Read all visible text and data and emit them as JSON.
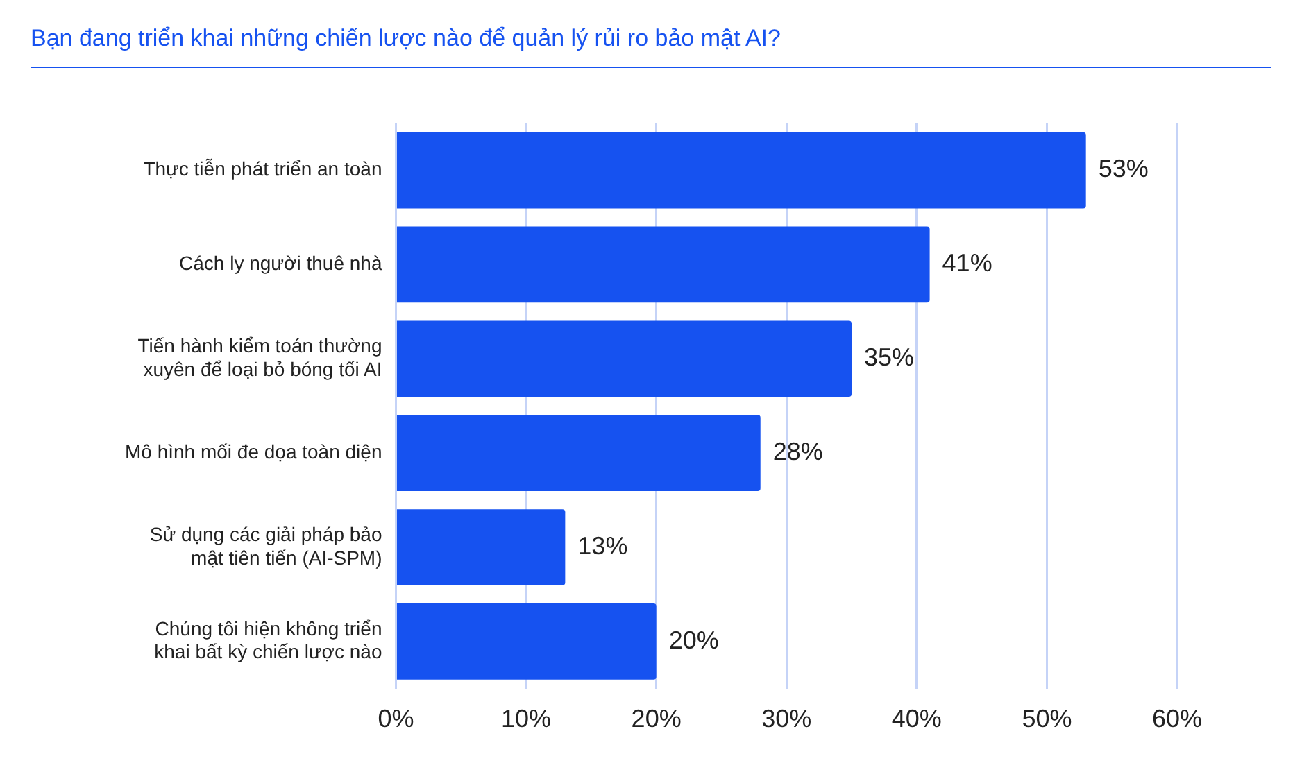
{
  "chart_data": {
    "type": "bar",
    "orientation": "horizontal",
    "title": "Bạn đang triển khai những chiến lược nào để quản lý rủi ro bảo mật AI?",
    "categories": [
      "Thực tiễn phát triển an toàn",
      "Cách ly người thuê nhà",
      "Tiến hành kiểm toán thường xuyên để loại bỏ bóng tối AI",
      "Mô hình mối đe dọa toàn diện",
      "Sử dụng các giải pháp bảo mật tiên tiến (AI-SPM)",
      "Chúng tôi hiện không triển khai bất kỳ chiến lược nào"
    ],
    "values": [
      53,
      41,
      35,
      28,
      13,
      20
    ],
    "value_labels": [
      "53%",
      "41%",
      "35%",
      "28%",
      "13%",
      "20%"
    ],
    "color": "#1652f0",
    "xlim": [
      0,
      60
    ],
    "xticks": [
      {
        "value": 0,
        "label": "0%"
      },
      {
        "value": 10,
        "label": "10%"
      },
      {
        "value": 20,
        "label": "20%"
      },
      {
        "value": 30,
        "label": "30%"
      },
      {
        "value": 40,
        "label": "40%"
      },
      {
        "value": 50,
        "label": "50%"
      },
      {
        "value": 60,
        "label": "60%"
      }
    ],
    "grid": "x",
    "legend": false
  }
}
